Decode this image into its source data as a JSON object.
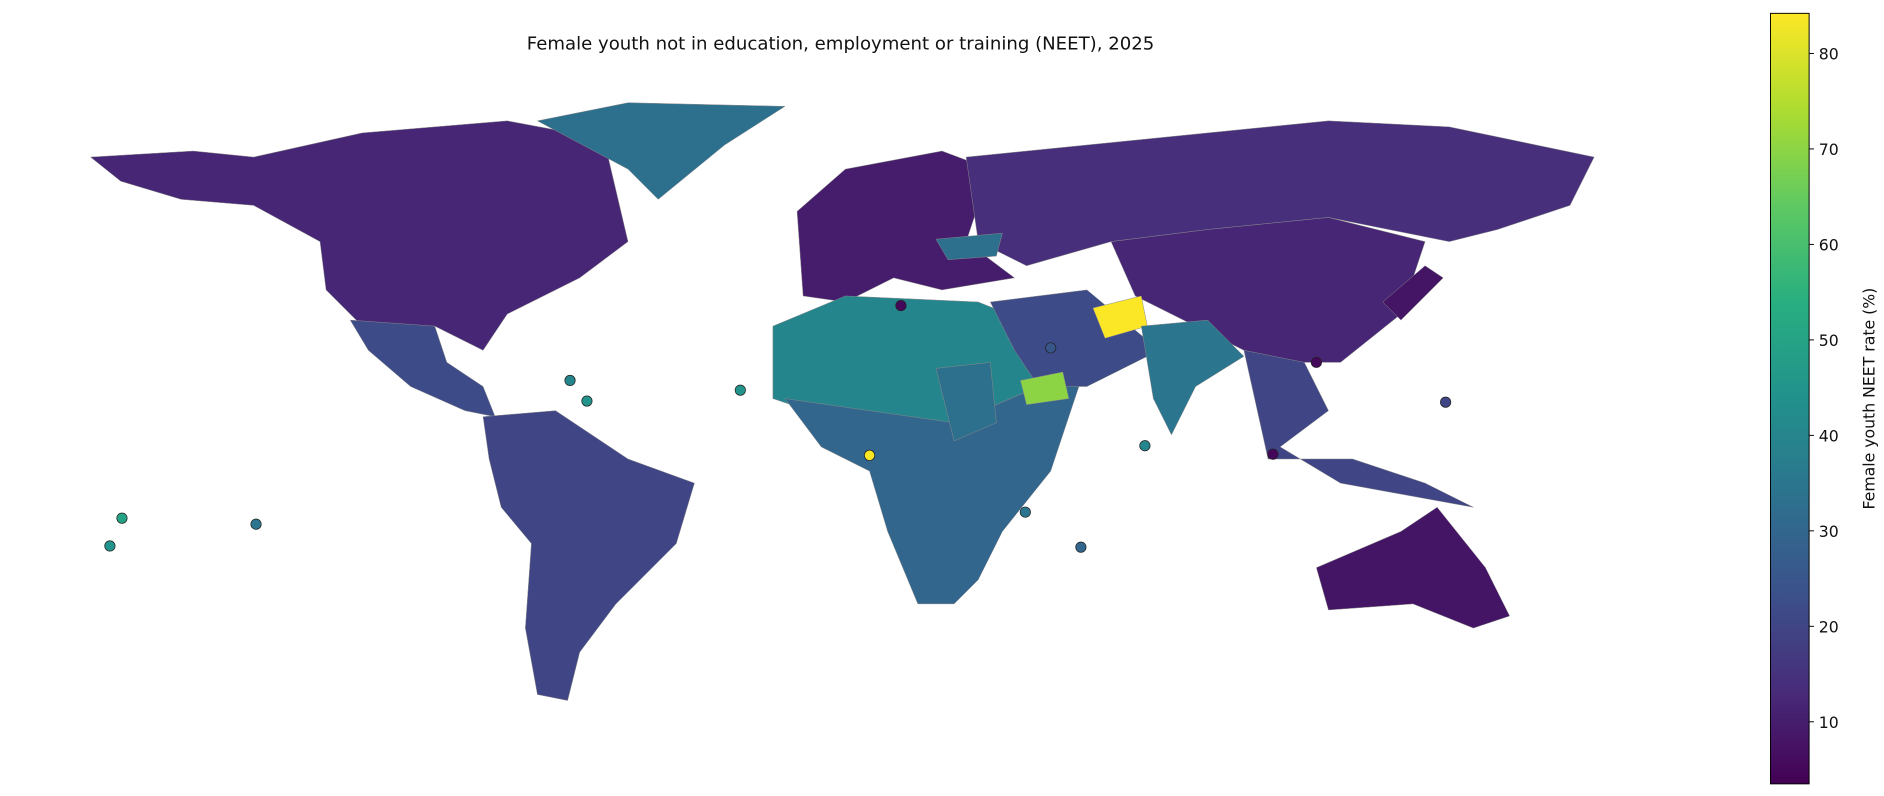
{
  "chart_data": {
    "type": "choropleth",
    "title": "Female youth not in education, employment or training (NEET), 2025",
    "colorbar_label": "Female youth NEET rate (%)",
    "colormap": "viridis",
    "clim": [
      3.5,
      84.2
    ],
    "cticks": [
      10,
      20,
      30,
      40,
      50,
      60,
      70,
      80
    ],
    "values": [
      12,
      33,
      22,
      20,
      10,
      14,
      12,
      40,
      30,
      22,
      84,
      70,
      35,
      20,
      8,
      8,
      33,
      33
    ],
    "marker_values": [
      40,
      45,
      45,
      84,
      50,
      45,
      35,
      40,
      35,
      30,
      20,
      5,
      5,
      5,
      25
    ]
  }
}
